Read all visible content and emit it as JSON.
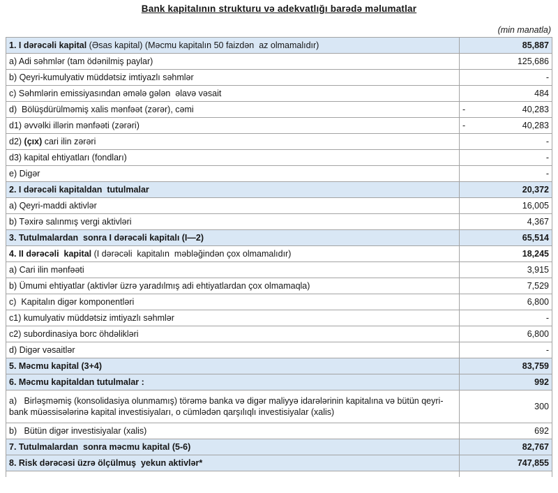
{
  "document": {
    "title": "Bank kapitalının strukturu və adekvatlığı barədə məlumatlar",
    "unit_note": "(min manatla)"
  },
  "colors": {
    "section_row_bg": "#d9e7f5",
    "table_border": "#a3a3a3"
  },
  "table": {
    "rows": [
      {
        "id": "1",
        "blue": true,
        "indent": 0,
        "parts": [
          {
            "text": "1. I dərəcəli kapital ",
            "bold": true
          },
          {
            "text": "(Əsas kapital) (Məcmu kapitalın 50 faizdən  az olmamalıdır)",
            "bold": false
          }
        ],
        "value": "85,887",
        "value_bold": true
      },
      {
        "id": "1a",
        "blue": false,
        "indent": 1,
        "parts": [
          {
            "text": "a) Adi səhmlər (tam ödənilmiş paylar)",
            "bold": false
          }
        ],
        "value": "125,686",
        "value_bold": false
      },
      {
        "id": "1b",
        "blue": false,
        "indent": 1,
        "parts": [
          {
            "text": "b) Qeyri-kumulyativ müddətsiz imtiyazlı səhmlər",
            "bold": false
          }
        ],
        "value": "-",
        "value_bold": false
      },
      {
        "id": "1c",
        "blue": false,
        "indent": 1,
        "parts": [
          {
            "text": "c) Səhmlərin emissiyasından əmələ gələn  əlavə vəsait",
            "bold": false
          }
        ],
        "value": "484",
        "value_bold": false
      },
      {
        "id": "1d",
        "blue": false,
        "indent": 1,
        "parts": [
          {
            "text": "d)  Bölüşdürülməmiş xalis mənfəət (zərər), cəmi",
            "bold": false
          }
        ],
        "value": "40,283",
        "negative": true,
        "value_bold": false
      },
      {
        "id": "1d1",
        "blue": false,
        "indent": 2,
        "parts": [
          {
            "text": "d1) əvvəlki illərin mənfəəti (zərəri)",
            "bold": false
          }
        ],
        "value": "40,283",
        "negative": true,
        "value_bold": false
      },
      {
        "id": "1d2",
        "blue": false,
        "indent": 2,
        "parts": [
          {
            "text": "d2) ",
            "bold": false
          },
          {
            "text": "(çıx)",
            "bold": true
          },
          {
            "text": " cari ilin zərəri",
            "bold": false
          }
        ],
        "value": "-",
        "value_bold": false
      },
      {
        "id": "1d3",
        "blue": false,
        "indent": 2,
        "parts": [
          {
            "text": "d3) kapital ehtiyatları (fondları)",
            "bold": false
          }
        ],
        "value": "-",
        "value_bold": false
      },
      {
        "id": "1e",
        "blue": false,
        "indent": 1,
        "parts": [
          {
            "text": "e) Digər",
            "bold": false
          }
        ],
        "value": "-",
        "value_bold": false
      },
      {
        "id": "2",
        "blue": true,
        "indent": 0,
        "parts": [
          {
            "text": "2. I dərəcəli kapitaldan  tutulmalar",
            "bold": true
          }
        ],
        "value": "20,372",
        "value_bold": true
      },
      {
        "id": "2a",
        "blue": false,
        "indent": 1,
        "parts": [
          {
            "text": "a) Qeyri-maddi aktivlər",
            "bold": false
          }
        ],
        "value": "16,005",
        "value_bold": false
      },
      {
        "id": "2b",
        "blue": false,
        "indent": 1,
        "parts": [
          {
            "text": "b) Təxirə salınmış vergi aktivləri",
            "bold": false
          }
        ],
        "value": "4,367",
        "value_bold": false
      },
      {
        "id": "3",
        "blue": true,
        "indent": 0,
        "parts": [
          {
            "text": "3. Tutulmalardan  sonra I dərəcəli kapitalı (I—2)",
            "bold": true
          }
        ],
        "value": "65,514",
        "value_bold": true
      },
      {
        "id": "4",
        "blue": false,
        "indent": 0,
        "parts": [
          {
            "text": "4. II dərəcəli  kapital ",
            "bold": true
          },
          {
            "text": "(I dərəcəli  kapitalın  məbləğindən çox olmamalıdır)",
            "bold": false
          }
        ],
        "value": "18,245",
        "value_bold": true
      },
      {
        "id": "4a",
        "blue": false,
        "indent": 1,
        "parts": [
          {
            "text": "a) Cari ilin mənfəəti",
            "bold": false
          }
        ],
        "value": "3,915",
        "value_bold": false
      },
      {
        "id": "4b",
        "blue": false,
        "indent": 1,
        "parts": [
          {
            "text": "b) Ümumi ehtiyatlar (aktivlər üzrə yaradılmış adi ehtiyatlardan çox olmamaqla)",
            "bold": false
          }
        ],
        "value": "7,529",
        "value_bold": false
      },
      {
        "id": "4c",
        "blue": false,
        "indent": 1,
        "parts": [
          {
            "text": "c)  Kapitalın digər komponentləri",
            "bold": false
          }
        ],
        "value": "6,800",
        "value_bold": false
      },
      {
        "id": "4c1",
        "blue": false,
        "indent": 2,
        "parts": [
          {
            "text": "c1) kumulyativ müddətsiz imtiyazlı səhmlər",
            "bold": false
          }
        ],
        "value": "-",
        "value_bold": false
      },
      {
        "id": "4c2",
        "blue": false,
        "indent": 2,
        "parts": [
          {
            "text": "c2) subordinasiya borc öhdəlikləri",
            "bold": false
          }
        ],
        "value": "6,800",
        "value_bold": false
      },
      {
        "id": "4d",
        "blue": false,
        "indent": 1,
        "parts": [
          {
            "text": "d) Digər vəsaitlər",
            "bold": false
          }
        ],
        "value": "-",
        "value_bold": false
      },
      {
        "id": "5",
        "blue": true,
        "indent": 0,
        "parts": [
          {
            "text": "5. Məcmu kapital (3+4)",
            "bold": true
          }
        ],
        "value": "83,759",
        "value_bold": true
      },
      {
        "id": "6",
        "blue": true,
        "indent": 0,
        "parts": [
          {
            "text": "6. Məcmu kapitaldan tutulmalar :",
            "bold": true
          }
        ],
        "value": "992",
        "value_bold": true
      },
      {
        "id": "6a",
        "blue": false,
        "indent": 1,
        "wrap": true,
        "parts": [
          {
            "text": "a)   Birləşməmiş (konsolidasiya olunmamış) törəmə banka və digər maliyyə idarələrinin kapitalına və bütün qeyri-bank müəssisələrinə kapital investisiyaları, o cümlədən qarşılıqlı investisiyalar (xalis)",
            "bold": false
          }
        ],
        "value": "300",
        "value_bold": false
      },
      {
        "id": "6b",
        "blue": false,
        "indent": 1,
        "parts": [
          {
            "text": "b)   Bütün digər investisiyalar (xalis)",
            "bold": false
          }
        ],
        "value": "692",
        "value_bold": false
      },
      {
        "id": "7",
        "blue": true,
        "indent": 0,
        "parts": [
          {
            "text": "7. Tutulmalardan  sonra məcmu kapital (5-6)",
            "bold": true
          }
        ],
        "value": "82,767",
        "value_bold": true
      },
      {
        "id": "8",
        "blue": true,
        "indent": 0,
        "parts": [
          {
            "text": "8. Risk dərəcəsi üzrə ölçülmuş  yekun aktivlər*",
            "bold": true
          }
        ],
        "value": "747,855",
        "value_bold": true
      }
    ]
  }
}
